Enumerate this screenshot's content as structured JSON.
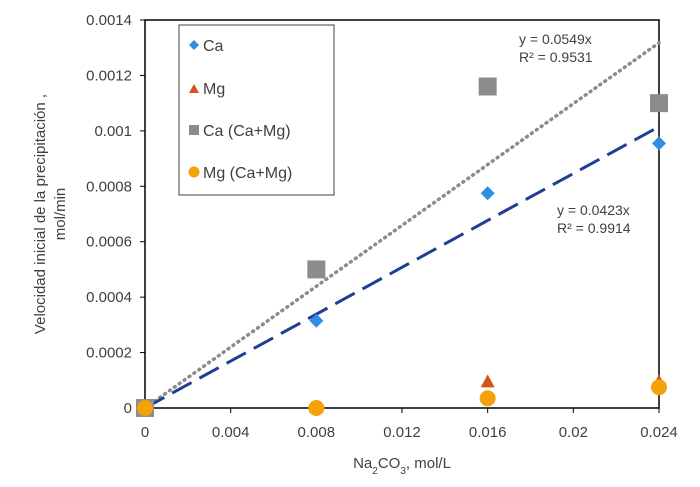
{
  "chart_data": {
    "type": "scatter",
    "title": "",
    "xlabel": {
      "base": "Na",
      "sub1": "2",
      "mid": "CO",
      "sub2": "3",
      "unit": ",  mol/L"
    },
    "ylabel_line1": "Velocidad inicial de la precipitación ,",
    "ylabel_line2": "mol/min",
    "xlim": [
      0,
      0.024
    ],
    "ylim": [
      0,
      0.0014
    ],
    "xticks": [
      0,
      0.004,
      0.008,
      0.012,
      0.016,
      0.02,
      0.024
    ],
    "xtick_labels": [
      "0",
      "0.004",
      "0.008",
      "0.012",
      "0.016",
      "0.02",
      "0.024"
    ],
    "yticks": [
      0,
      0.0002,
      0.0004,
      0.0006,
      0.0008,
      0.001,
      0.0012,
      0.0014
    ],
    "ytick_labels": [
      "0",
      "0.0002",
      "0.0004",
      "0.0006",
      "0.0008",
      "0.001",
      "0.0012",
      "0.0014"
    ],
    "grid": false,
    "legend_position": "top-left",
    "series": [
      {
        "name": "Ca",
        "marker": "diamond",
        "color": "#2e8fe0",
        "x": [
          0,
          0.008,
          0.016,
          0.024
        ],
        "y": [
          0,
          0.000315,
          0.000775,
          0.000955
        ]
      },
      {
        "name": "Mg",
        "marker": "triangle",
        "color": "#d2541b",
        "x": [
          0,
          0.008,
          0.016,
          0.024
        ],
        "y": [
          0,
          0,
          9.25e-05,
          9.25e-05
        ]
      },
      {
        "name": "Ca (Ca+Mg)",
        "marker": "square",
        "color": "#8c8c8c",
        "x": [
          0,
          0.008,
          0.016,
          0.024
        ],
        "y": [
          0,
          0.0005,
          0.00116,
          0.0011
        ]
      },
      {
        "name": "Mg (Ca+Mg)",
        "marker": "circle",
        "color": "#f5a20a",
        "x": [
          0,
          0.008,
          0.016,
          0.024
        ],
        "y": [
          0,
          0,
          3.5e-05,
          7.5e-05
        ]
      }
    ],
    "trendlines": [
      {
        "name": "trend-ca-ca-mg",
        "slope": 0.0549,
        "style": "dotted",
        "color": "#8c8c8c",
        "equation": "y = 0.0549x",
        "r2": "R² = 0.9531"
      },
      {
        "name": "trend-ca",
        "slope": 0.0423,
        "style": "dashed",
        "color": "#1f3f95",
        "equation": "y = 0.0423x",
        "r2": "R² = 0.9914"
      }
    ]
  }
}
